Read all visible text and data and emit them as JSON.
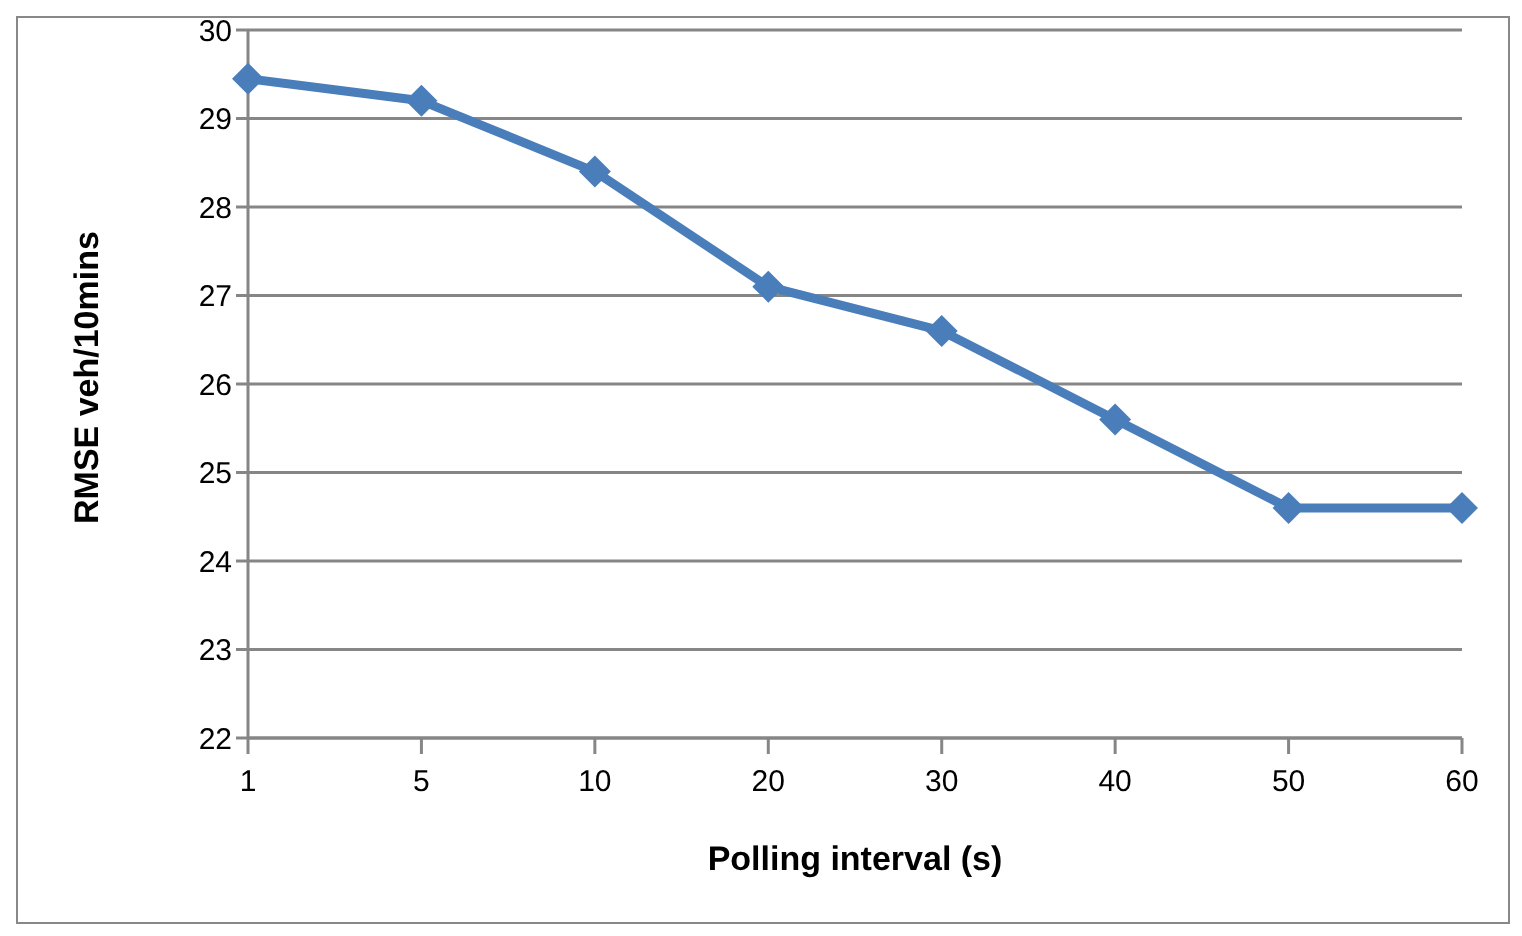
{
  "chart_data": {
    "type": "line",
    "xlabel": "Polling interval (s)",
    "ylabel": "RMSE veh/10mins",
    "categories": [
      "1",
      "5",
      "10",
      "20",
      "30",
      "40",
      "50",
      "60"
    ],
    "series": [
      {
        "color": "#4a7ebb",
        "values": [
          29.45,
          29.2,
          28.4,
          27.1,
          26.6,
          25.6,
          24.6,
          24.6
        ]
      }
    ],
    "ylim": [
      22,
      30
    ],
    "yticks": [
      22,
      23,
      24,
      25,
      26,
      27,
      28,
      29,
      30
    ],
    "grid": "y",
    "legend": false,
    "marker": "diamond",
    "line_style": "solid"
  }
}
